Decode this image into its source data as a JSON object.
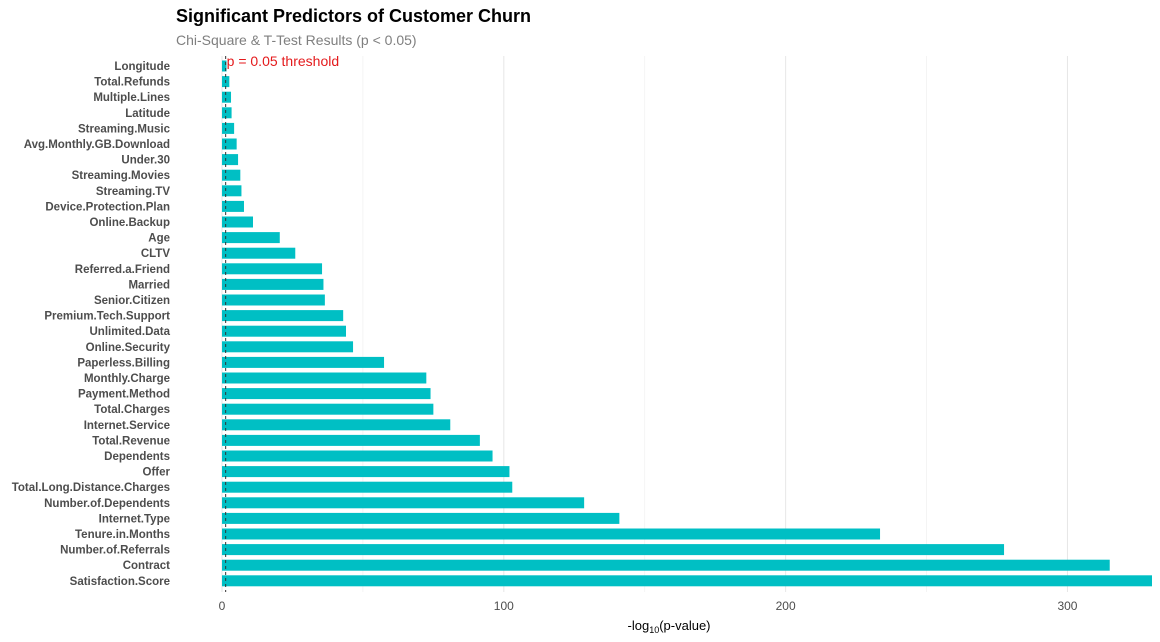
{
  "chart_data": {
    "type": "bar",
    "orientation": "horizontal",
    "title": "Significant Predictors of Customer Churn",
    "subtitle": "Chi-Square & T-Test Results (p < 0.05)",
    "xlabel_prefix": "-log",
    "xlabel_sub": "10",
    "xlabel_suffix": "(p-value)",
    "ylabel": "",
    "xlim": [
      0,
      330
    ],
    "xticks": [
      0,
      100,
      200,
      300
    ],
    "bar_color": "#00BFC4",
    "threshold": {
      "value": 1.3,
      "label": "p = 0.05 threshold",
      "color": "#e41a1c"
    },
    "grid": true,
    "categories": [
      "Longitude",
      "Total.Refunds",
      "Multiple.Lines",
      "Latitude",
      "Streaming.Music",
      "Avg.Monthly.GB.Download",
      "Under.30",
      "Streaming.Movies",
      "Streaming.TV",
      "Device.Protection.Plan",
      "Online.Backup",
      "Age",
      "CLTV",
      "Referred.a.Friend",
      "Married",
      "Senior.Citizen",
      "Premium.Tech.Support",
      "Unlimited.Data",
      "Online.Security",
      "Paperless.Billing",
      "Monthly.Charge",
      "Payment.Method",
      "Total.Charges",
      "Internet.Service",
      "Total.Revenue",
      "Dependents",
      "Offer",
      "Total.Long.Distance.Charges",
      "Number.of.Dependents",
      "Internet.Type",
      "Tenure.in.Months",
      "Number.of.Referrals",
      "Contract",
      "Satisfaction.Score"
    ],
    "values": [
      1.6,
      2.6,
      3.2,
      3.4,
      4.3,
      5.2,
      5.7,
      6.5,
      6.9,
      7.8,
      11,
      20.5,
      26,
      35.5,
      36,
      36.5,
      43,
      44,
      46.5,
      57.5,
      72.5,
      74,
      75,
      81,
      91.5,
      96,
      102,
      103,
      128.5,
      141,
      233.5,
      277.5,
      315,
      330
    ]
  }
}
